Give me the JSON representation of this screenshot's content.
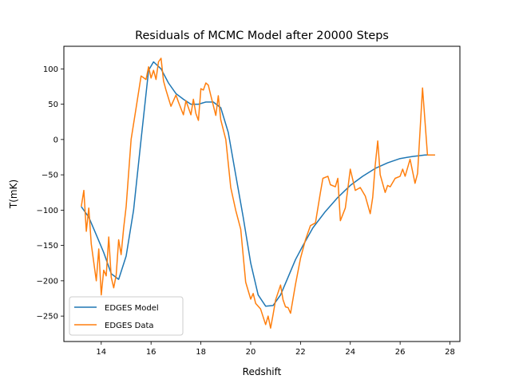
{
  "chart_data": {
    "type": "line",
    "title": "Residuals of MCMC Model after 20000 Steps",
    "xlabel": "Redshift",
    "ylabel": "T(mK)",
    "xlim": [
      12.5,
      28.4
    ],
    "ylim": [
      -286,
      132
    ],
    "xticks": [
      14,
      16,
      18,
      20,
      22,
      24,
      26,
      28
    ],
    "yticks": [
      -250,
      -200,
      -150,
      -100,
      -50,
      0,
      50,
      100
    ],
    "grid": false,
    "legend_position": "lower-left",
    "series": [
      {
        "name": "EDGES Model",
        "color": "#1f77b4",
        "x": [
          13.2,
          13.5,
          13.8,
          14.1,
          14.4,
          14.7,
          15.0,
          15.3,
          15.6,
          15.9,
          16.1,
          16.4,
          16.7,
          17.0,
          17.3,
          17.6,
          17.9,
          18.2,
          18.5,
          18.8,
          19.1,
          19.4,
          19.7,
          20.0,
          20.3,
          20.6,
          20.9,
          21.2,
          21.5,
          21.8,
          22.1,
          22.5,
          23.0,
          23.5,
          24.0,
          24.5,
          25.0,
          25.5,
          26.0,
          26.5,
          27.0,
          27.4
        ],
        "y": [
          -95,
          -110,
          -135,
          -160,
          -190,
          -198,
          -165,
          -100,
          0,
          98,
          110,
          100,
          80,
          65,
          57,
          50,
          50,
          53,
          53,
          45,
          10,
          -50,
          -110,
          -175,
          -220,
          -236,
          -235,
          -220,
          -195,
          -170,
          -150,
          -125,
          -102,
          -82,
          -65,
          -52,
          -41,
          -33,
          -27,
          -24,
          -22,
          -22
        ]
      },
      {
        "name": "EDGES Data",
        "color": "#ff7f0e",
        "x": [
          13.2,
          13.3,
          13.4,
          13.5,
          13.6,
          13.8,
          13.9,
          14.0,
          14.1,
          14.2,
          14.3,
          14.4,
          14.5,
          14.6,
          14.7,
          14.8,
          14.9,
          15.0,
          15.2,
          15.4,
          15.6,
          15.8,
          15.9,
          16.0,
          16.1,
          16.2,
          16.3,
          16.4,
          16.5,
          16.6,
          16.8,
          17.0,
          17.1,
          17.3,
          17.4,
          17.6,
          17.7,
          17.8,
          17.9,
          18.0,
          18.1,
          18.2,
          18.3,
          18.4,
          18.6,
          18.7,
          18.8,
          19.0,
          19.2,
          19.4,
          19.6,
          19.8,
          20.0,
          20.1,
          20.2,
          20.4,
          20.6,
          20.7,
          20.8,
          20.9,
          21.0,
          21.2,
          21.3,
          21.4,
          21.5,
          21.6,
          21.8,
          22.0,
          22.2,
          22.4,
          22.6,
          22.8,
          22.9,
          23.1,
          23.2,
          23.4,
          23.5,
          23.6,
          23.8,
          23.9,
          24.0,
          24.2,
          24.4,
          24.6,
          24.8,
          24.9,
          25.0,
          25.1,
          25.2,
          25.4,
          25.5,
          25.6,
          25.8,
          26.0,
          26.1,
          26.2,
          26.4,
          26.6,
          26.7,
          26.9,
          27.1,
          27.4
        ],
        "y": [
          -95,
          -72,
          -130,
          -97,
          -148,
          -200,
          -155,
          -220,
          -185,
          -193,
          -138,
          -195,
          -210,
          -192,
          -142,
          -163,
          -125,
          -95,
          0,
          45,
          90,
          85,
          103,
          87,
          98,
          85,
          110,
          115,
          83,
          70,
          47,
          63,
          53,
          35,
          55,
          35,
          57,
          37,
          27,
          72,
          70,
          80,
          77,
          62,
          34,
          62,
          28,
          0,
          -68,
          -100,
          -127,
          -202,
          -226,
          -218,
          -232,
          -240,
          -262,
          -250,
          -267,
          -248,
          -227,
          -206,
          -227,
          -237,
          -238,
          -246,
          -205,
          -168,
          -142,
          -122,
          -118,
          -75,
          -55,
          -52,
          -64,
          -67,
          -55,
          -115,
          -97,
          -70,
          -42,
          -72,
          -68,
          -80,
          -105,
          -82,
          -37,
          -2,
          -50,
          -75,
          -65,
          -67,
          -55,
          -52,
          -42,
          -52,
          -28,
          -62,
          -48,
          73,
          -22,
          -22
        ]
      }
    ]
  }
}
